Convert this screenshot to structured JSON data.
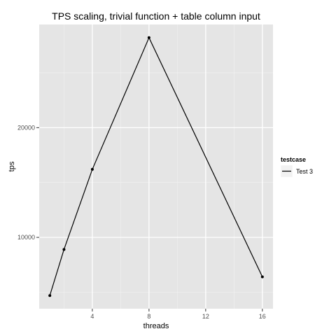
{
  "chart_data": {
    "type": "line",
    "title": "TPS scaling, trivial function + table column input",
    "xlabel": "threads",
    "ylabel": "tps",
    "x": [
      1,
      2,
      4,
      8,
      16
    ],
    "series": [
      {
        "name": "Test 3",
        "values": [
          4700,
          8900,
          16200,
          28200,
          6400
        ],
        "color": "#000000"
      }
    ],
    "xlim": [
      0.25,
      16.75
    ],
    "ylim": [
      3500,
      29400
    ],
    "xticks": [
      4,
      8,
      12,
      16
    ],
    "xtick_labels": [
      "4",
      "8",
      "12",
      "16"
    ],
    "yticks": [
      10000,
      20000
    ],
    "ytick_labels": [
      "10000",
      "20000"
    ],
    "xminor": [
      2,
      6,
      10,
      14
    ],
    "yminor": [
      5000,
      15000,
      25000
    ],
    "grid": true,
    "panel_color": "#e5e5e5",
    "legend": {
      "title": "testcase",
      "position": "right"
    }
  }
}
